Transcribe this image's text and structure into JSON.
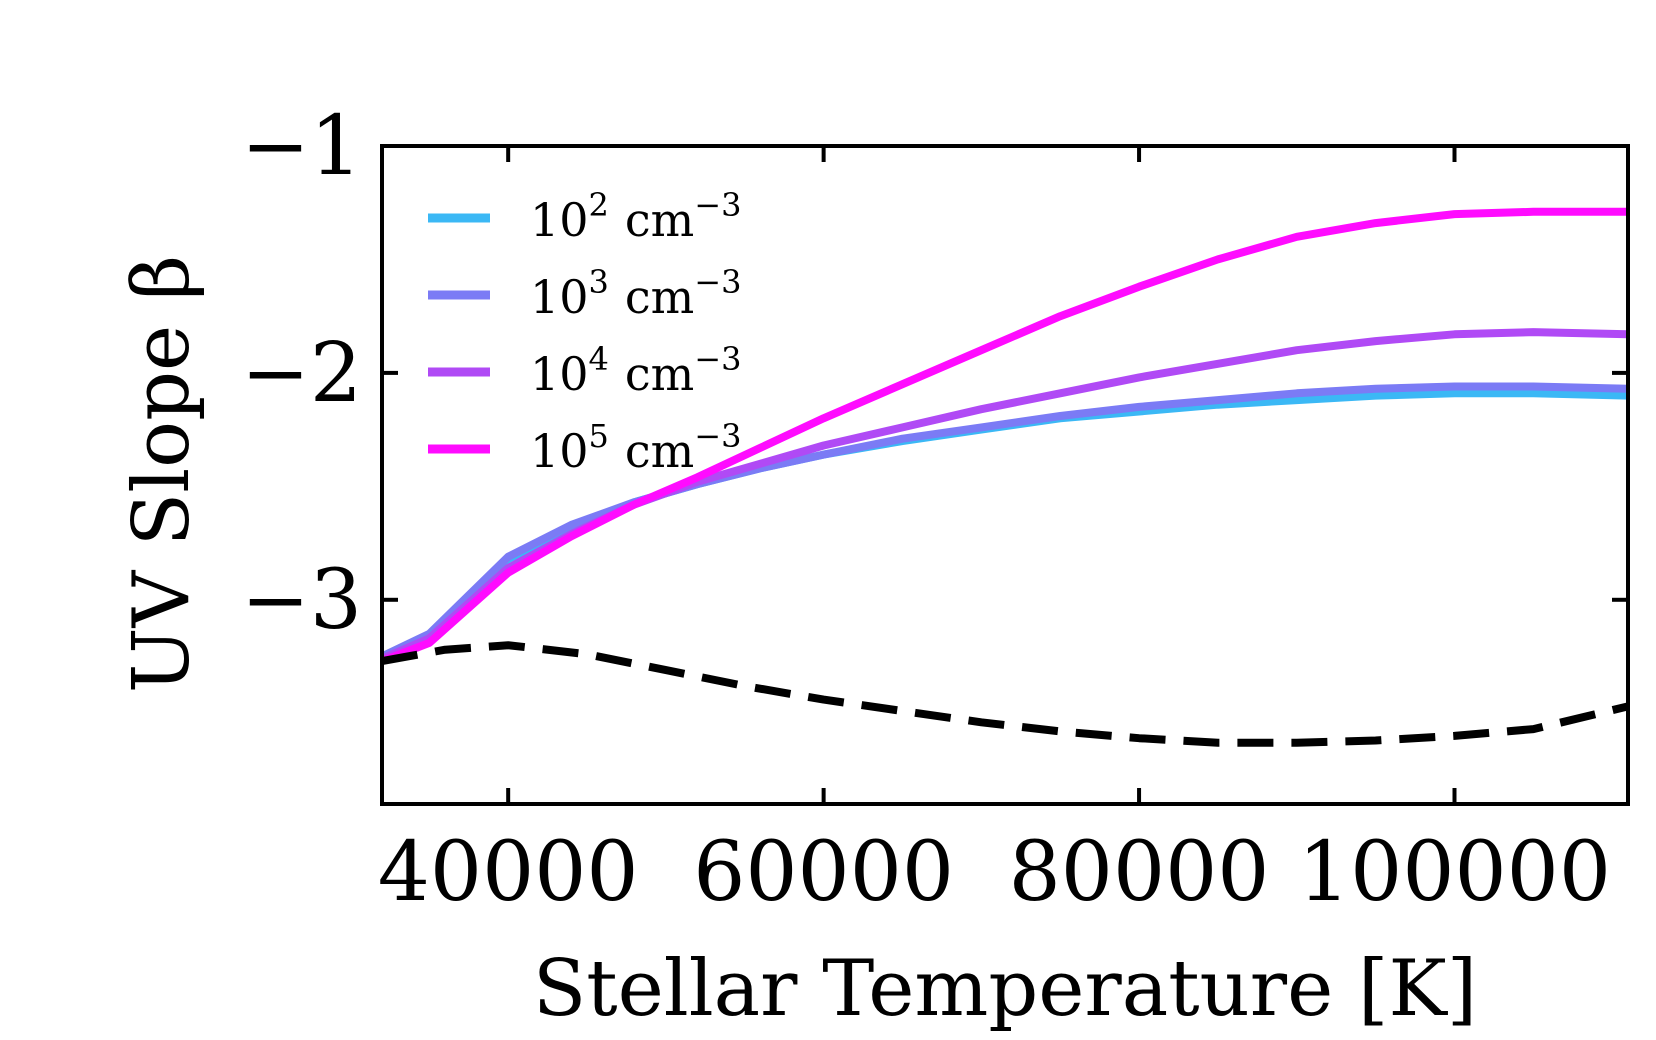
{
  "chart_data": {
    "type": "line",
    "xlabel": "Stellar Temperature [K]",
    "ylabel": "UV Slope β",
    "xlim": [
      32000,
      111000
    ],
    "ylim": [
      -3.9,
      -1.0
    ],
    "xticks": [
      40000,
      60000,
      80000,
      100000
    ],
    "xtick_labels": [
      "40000",
      "60000",
      "80000",
      "100000"
    ],
    "yticks": [
      -1,
      -2,
      -3
    ],
    "ytick_labels": [
      "−1",
      "−2",
      "−3"
    ],
    "grid": false,
    "legend_position": "top-left",
    "series": [
      {
        "name": "10² cm⁻³",
        "name_base": "10",
        "name_exp": "2",
        "name_unit": "cm",
        "name_unit_exp": "−3",
        "color": "#3bb8f5",
        "style": "solid",
        "x": [
          32000,
          35000,
          40000,
          44000,
          48000,
          52000,
          56000,
          60000,
          65000,
          70000,
          75000,
          80000,
          85000,
          90000,
          95000,
          100000,
          105000,
          111000
        ],
        "y": [
          -3.25,
          -3.16,
          -2.82,
          -2.68,
          -2.57,
          -2.49,
          -2.42,
          -2.36,
          -2.3,
          -2.25,
          -2.2,
          -2.17,
          -2.14,
          -2.12,
          -2.1,
          -2.09,
          -2.09,
          -2.1
        ]
      },
      {
        "name": "10³ cm⁻³",
        "name_base": "10",
        "name_exp": "3",
        "name_unit": "cm",
        "name_unit_exp": "−3",
        "color": "#7b7bf5",
        "style": "solid",
        "x": [
          32000,
          35000,
          40000,
          44000,
          48000,
          52000,
          56000,
          60000,
          65000,
          70000,
          75000,
          80000,
          85000,
          90000,
          95000,
          100000,
          105000,
          111000
        ],
        "y": [
          -3.25,
          -3.15,
          -2.81,
          -2.67,
          -2.57,
          -2.49,
          -2.42,
          -2.36,
          -2.29,
          -2.24,
          -2.19,
          -2.15,
          -2.12,
          -2.09,
          -2.07,
          -2.06,
          -2.06,
          -2.07
        ]
      },
      {
        "name": "10⁴ cm⁻³",
        "name_base": "10",
        "name_exp": "4",
        "name_unit": "cm",
        "name_unit_exp": "−3",
        "color": "#b04af5",
        "style": "solid",
        "x": [
          32000,
          35000,
          40000,
          44000,
          48000,
          52000,
          56000,
          60000,
          65000,
          70000,
          75000,
          80000,
          85000,
          90000,
          95000,
          100000,
          105000,
          111000
        ],
        "y": [
          -3.26,
          -3.17,
          -2.86,
          -2.71,
          -2.58,
          -2.48,
          -2.4,
          -2.32,
          -2.24,
          -2.16,
          -2.09,
          -2.02,
          -1.96,
          -1.9,
          -1.86,
          -1.83,
          -1.82,
          -1.83
        ]
      },
      {
        "name": "10⁵ cm⁻³",
        "name_base": "10",
        "name_exp": "5",
        "name_unit": "cm",
        "name_unit_exp": "−3",
        "color": "#ff0bff",
        "style": "solid",
        "x": [
          32000,
          35000,
          40000,
          44000,
          48000,
          52000,
          56000,
          60000,
          65000,
          70000,
          75000,
          80000,
          85000,
          90000,
          95000,
          100000,
          105000,
          111000
        ],
        "y": [
          -3.27,
          -3.19,
          -2.88,
          -2.72,
          -2.58,
          -2.46,
          -2.33,
          -2.2,
          -2.05,
          -1.9,
          -1.75,
          -1.62,
          -1.5,
          -1.4,
          -1.34,
          -1.3,
          -1.29,
          -1.29
        ]
      },
      {
        "name": "",
        "color": "#000000",
        "style": "dashed",
        "x": [
          32000,
          36000,
          40000,
          45000,
          50000,
          55000,
          60000,
          65000,
          70000,
          75000,
          80000,
          85000,
          90000,
          95000,
          100000,
          105000,
          111000
        ],
        "y": [
          -3.27,
          -3.22,
          -3.2,
          -3.24,
          -3.31,
          -3.38,
          -3.44,
          -3.49,
          -3.54,
          -3.58,
          -3.61,
          -3.63,
          -3.63,
          -3.62,
          -3.6,
          -3.57,
          -3.47
        ]
      }
    ]
  }
}
